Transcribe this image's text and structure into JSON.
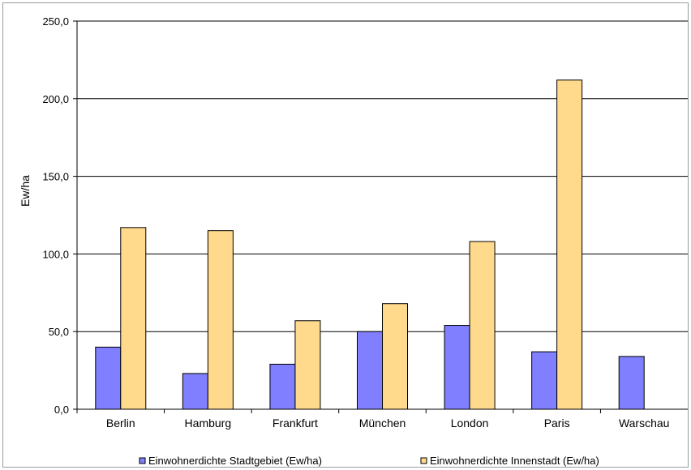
{
  "chart_data": {
    "type": "bar",
    "title": "",
    "xlabel": "",
    "ylabel": "Ew/ha",
    "ylim": [
      0,
      250
    ],
    "yticks": [
      "0,0",
      "50,0",
      "100,0",
      "150,0",
      "200,0",
      "250,0"
    ],
    "ytick_values": [
      0,
      50,
      100,
      150,
      200,
      250
    ],
    "grid": true,
    "legend_position": "bottom",
    "categories": [
      "Berlin",
      "Hamburg",
      "Frankfurt",
      "München",
      "London",
      "Paris",
      "Warschau"
    ],
    "series": [
      {
        "name": "Einwohnerdichte Stadtgebiet (Ew/ha)",
        "color": "#7f7fff",
        "values": [
          40,
          23,
          29,
          50,
          54,
          37,
          34
        ]
      },
      {
        "name": "Einwohnerdichte Innenstadt (Ew/ha)",
        "color": "#ffd98c",
        "values": [
          117,
          115,
          57,
          68,
          108,
          212,
          null
        ]
      }
    ]
  }
}
